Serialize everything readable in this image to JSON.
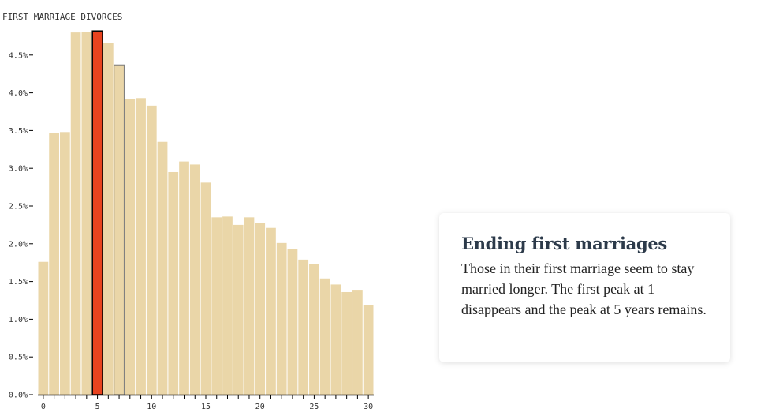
{
  "chart_data": {
    "type": "bar",
    "title": "FIRST MARRIAGE DIVORCES",
    "x": [
      0,
      1,
      2,
      3,
      4,
      5,
      6,
      7,
      8,
      9,
      10,
      11,
      12,
      13,
      14,
      15,
      16,
      17,
      18,
      19,
      20,
      21,
      22,
      23,
      24,
      25,
      26,
      27,
      28,
      29,
      30
    ],
    "values": [
      1.76,
      3.47,
      3.48,
      4.8,
      4.81,
      4.82,
      4.66,
      4.37,
      3.92,
      3.93,
      3.83,
      3.35,
      2.95,
      3.09,
      3.05,
      2.81,
      2.35,
      2.36,
      2.25,
      2.35,
      2.27,
      2.21,
      2.01,
      1.93,
      1.79,
      1.73,
      1.54,
      1.46,
      1.36,
      1.38,
      1.19
    ],
    "highlight_index": 5,
    "outlined_index": 7,
    "x_ticks": [
      0,
      5,
      10,
      15,
      20,
      25,
      30
    ],
    "y_ticks": [
      "0.0%",
      "0.5%",
      "1.0%",
      "1.5%",
      "2.0%",
      "2.5%",
      "3.0%",
      "3.5%",
      "4.0%",
      "4.5%"
    ],
    "y_tick_values": [
      0,
      0.5,
      1,
      1.5,
      2,
      2.5,
      3,
      3.5,
      4,
      4.5
    ],
    "ylim": [
      0,
      5.0
    ],
    "xlim": [
      -0.5,
      30.5
    ],
    "xlabel": "",
    "ylabel": "",
    "grid": false,
    "colors": {
      "bar": "#ead6a8",
      "highlight": "#e8431f",
      "outline": "#777777",
      "axis": "#000000"
    }
  },
  "card": {
    "title": "Ending first marriages",
    "text": "Those in their first marriage seem to stay married longer. The first peak at 1 disappears and the peak at 5 years remains."
  }
}
